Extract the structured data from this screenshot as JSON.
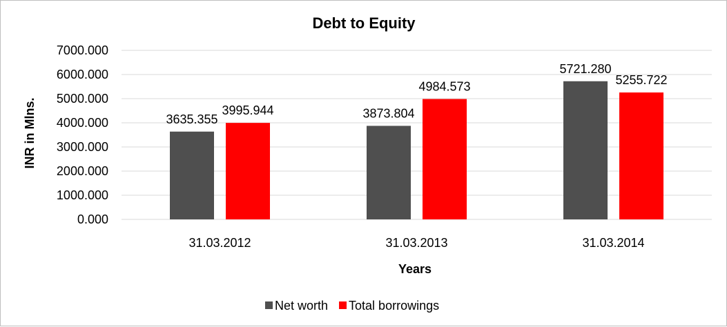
{
  "chart_data": {
    "type": "bar",
    "title": "Debt to Equity",
    "xlabel": "Years",
    "ylabel": "INR in Mlns.",
    "categories": [
      "31.03.2012",
      "31.03.2013",
      "31.03.2014"
    ],
    "series": [
      {
        "name": "Net worth",
        "color": "#4f4f4f",
        "values": [
          3635.355,
          3873.804,
          5721.28
        ],
        "labels": [
          "3635.355",
          "3873.804",
          "5721.280"
        ]
      },
      {
        "name": "Total borrowings",
        "color": "#ff0000",
        "values": [
          3995.944,
          4984.573,
          5255.722
        ],
        "labels": [
          "3995.944",
          "4984.573",
          "5255.722"
        ]
      }
    ],
    "ylim": [
      0,
      7000
    ],
    "yticks": [
      "0.000",
      "1000.000",
      "2000.000",
      "3000.000",
      "4000.000",
      "5000.000",
      "6000.000",
      "7000.000"
    ],
    "grid": true,
    "legend": "bottom"
  }
}
